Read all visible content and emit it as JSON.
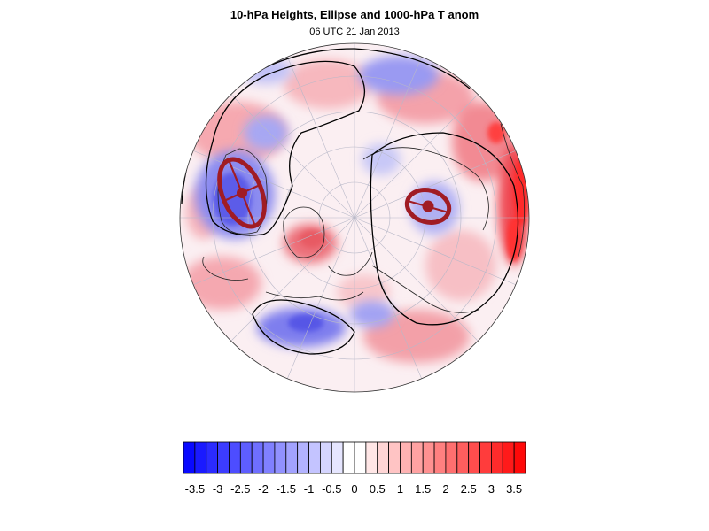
{
  "header": {
    "title": "10-hPa Heights, Ellipse and 1000-hPa T anom",
    "subtitle": "06 UTC 21 Jan 2013"
  },
  "map": {
    "projection": "polar-stereographic-north",
    "fill_variable": "1000-hPa T anom",
    "contour_variable": "10-hPa Heights",
    "overlay": "ellipse",
    "ellipse_color": "#a01c24",
    "contour_color": "#000000",
    "colors": {
      "warm": "#ff1a1a",
      "cold": "#1a1aff"
    }
  },
  "colorbar": {
    "tick_labels": [
      "-3.5",
      "-3",
      "-2.5",
      "-2",
      "-1.5",
      "-1",
      "-0.5",
      "0",
      "0.5",
      "1",
      "1.5",
      "2",
      "2.5",
      "3",
      "3.5"
    ],
    "levels": [
      -3.75,
      -3.5,
      -3.25,
      -3,
      -2.75,
      -2.5,
      -2.25,
      -2,
      -1.75,
      -1.5,
      -1.25,
      -1,
      -0.75,
      -0.5,
      -0.25,
      0,
      0.25,
      0.5,
      0.75,
      1,
      1.25,
      1.5,
      1.75,
      2,
      2.25,
      2.5,
      2.75,
      3,
      3.25,
      3.5,
      3.75
    ]
  }
}
